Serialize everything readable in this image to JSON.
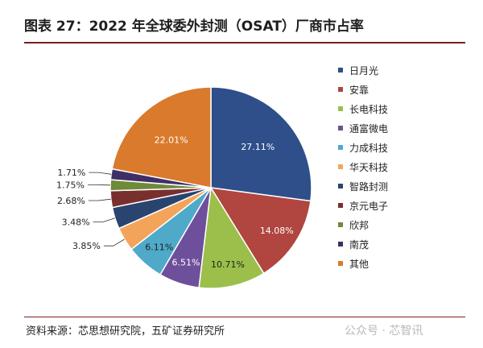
{
  "title": "图表 27：2022 年全球委外封测（OSAT）厂商市占率",
  "source": "资料来源：芯思想研究院，五矿证券研究所",
  "watermark": "公众号 · 芯智讯",
  "chart_data": {
    "type": "pie",
    "legend_position": "right",
    "slices": [
      {
        "name": "日月光",
        "value": 27.11,
        "label": "27.11%",
        "color": "#2f4f8a"
      },
      {
        "name": "安靠",
        "value": 14.08,
        "label": "14.08%",
        "color": "#b0463f"
      },
      {
        "name": "长电科技",
        "value": 10.71,
        "label": "10.71%",
        "color": "#9bbf4a"
      },
      {
        "name": "通富微电",
        "value": 6.51,
        "label": "6.51%",
        "color": "#6e4f9b"
      },
      {
        "name": "力成科技",
        "value": 6.11,
        "label": "6.11%",
        "color": "#4fa9c9"
      },
      {
        "name": "华天科技",
        "value": 3.85,
        "label": "3.85%",
        "color": "#f4a45a"
      },
      {
        "name": "智路封测",
        "value": 3.48,
        "label": "3.48%",
        "color": "#2a4470"
      },
      {
        "name": "京元电子",
        "value": 2.68,
        "label": "2.68%",
        "color": "#7a2f2f"
      },
      {
        "name": "欣邦",
        "value": 1.75,
        "label": "1.75%",
        "color": "#6e8a3a"
      },
      {
        "name": "南茂",
        "value": 1.71,
        "label": "1.71%",
        "color": "#3f2f66"
      },
      {
        "name": "其他",
        "value": 22.01,
        "label": "22.01%",
        "color": "#d97a2c"
      }
    ]
  }
}
